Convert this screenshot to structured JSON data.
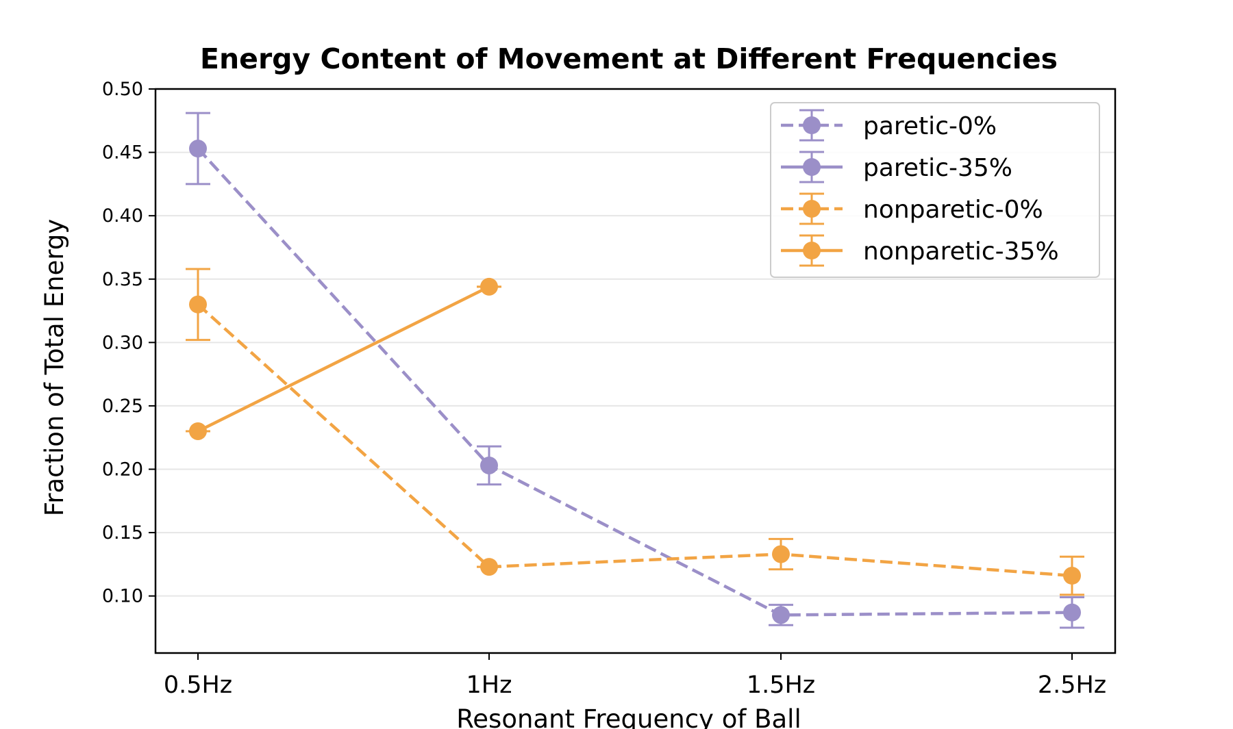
{
  "chart_data": {
    "type": "line",
    "title": "Energy Content of Movement at Different Frequencies",
    "xlabel": "Resonant Frequency of Ball",
    "ylabel": "Fraction of Total Energy",
    "categories": [
      "0.5Hz",
      "1Hz",
      "1.5Hz",
      "2.5Hz"
    ],
    "ylim": [
      0.055,
      0.5
    ],
    "yticks": [
      "0.10",
      "0.15",
      "0.20",
      "0.25",
      "0.30",
      "0.35",
      "0.40",
      "0.45",
      "0.50"
    ],
    "grid": "horizontal",
    "legend_position": "top-right",
    "series": [
      {
        "name": "paretic-0%",
        "color": "#9b8fc8",
        "linestyle": "dashed",
        "values": [
          0.453,
          0.203,
          0.085,
          0.087
        ],
        "errors": [
          0.028,
          0.015,
          0.008,
          0.012
        ]
      },
      {
        "name": "paretic-35%",
        "color": "#9b8fc8",
        "linestyle": "solid",
        "values": [
          null,
          null,
          null,
          null
        ],
        "errors": [
          null,
          null,
          null,
          null
        ]
      },
      {
        "name": "nonparetic-0%",
        "color": "#f2a444",
        "linestyle": "dashed",
        "values": [
          0.33,
          0.123,
          0.133,
          0.116
        ],
        "errors": [
          0.028,
          0.0,
          0.012,
          0.015
        ]
      },
      {
        "name": "nonparetic-35%",
        "color": "#f2a444",
        "linestyle": "solid",
        "values": [
          0.23,
          0.344,
          null,
          null
        ],
        "errors": [
          0.0,
          0.0,
          null,
          null
        ]
      }
    ]
  }
}
